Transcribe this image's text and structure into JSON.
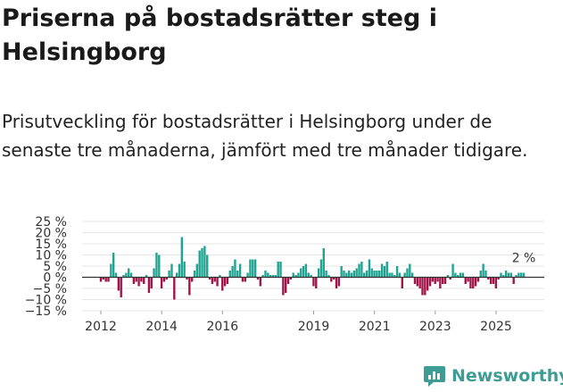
{
  "header": {
    "title": "Priserna på bostadsrätter steg i Helsingborg",
    "subtitle": "Prisutveckling för bostadsrätter i Helsingborg under de senaste tre månaderna, jämfört med tre månader tidigare."
  },
  "brand": {
    "name": "Newsworthy",
    "color": "#3d9c93"
  },
  "chart_data": {
    "type": "bar",
    "title": "",
    "xlabel": "",
    "ylabel": "",
    "ylim": [
      -15,
      25
    ],
    "y_ticks": [
      "25 %",
      "20 %",
      "15 %",
      "10 %",
      "5 %",
      "0 %",
      "−5 %",
      "−10 %",
      "−15 %"
    ],
    "y_tick_values": [
      25,
      20,
      15,
      10,
      5,
      0,
      -5,
      -10,
      -15
    ],
    "x_ticks": [
      "2012",
      "2014",
      "2016",
      "2019",
      "2021",
      "2023",
      "2025"
    ],
    "x_tick_values": [
      2012,
      2014,
      2016,
      2019,
      2021,
      2023,
      2025
    ],
    "x_start": 2012.0,
    "step": 0.0833,
    "positive_color": "#20a391",
    "negative_color": "#a01448",
    "annotation": "2 %",
    "series": [
      {
        "name": "Prisutveckling",
        "values": [
          -2,
          -1,
          -2,
          -2,
          6,
          11,
          2,
          -6,
          -9,
          1,
          2,
          4,
          2,
          -3,
          -2,
          -4,
          -2,
          -3,
          1,
          -7,
          -5,
          4,
          11,
          10,
          -5,
          -2,
          -1,
          3,
          6,
          -10,
          2,
          6,
          18,
          7,
          -1,
          -8,
          -2,
          3,
          6,
          12,
          13,
          14,
          10,
          -1,
          -3,
          -2,
          -4,
          1,
          -6,
          -4,
          -3,
          3,
          5,
          8,
          3,
          6,
          -2,
          -2,
          2,
          8,
          8,
          8,
          -1,
          -4,
          1,
          3,
          2,
          1,
          1,
          1,
          7,
          7,
          -8,
          -7,
          -3,
          -1,
          2,
          1,
          2,
          4,
          5,
          6,
          2,
          1,
          -4,
          -5,
          4,
          8,
          13,
          3,
          1,
          -2,
          -1,
          -5,
          -4,
          5,
          3,
          2,
          3,
          2,
          3,
          4,
          6,
          7,
          2,
          3,
          8,
          4,
          3,
          3,
          3,
          6,
          5,
          7,
          2,
          2,
          1,
          5,
          2,
          -5,
          2,
          4,
          6,
          2,
          -3,
          -4,
          -5,
          -8,
          -8,
          -6,
          -4,
          -2,
          -3,
          -2,
          -5,
          -3,
          -3,
          1,
          -1,
          6,
          2,
          1,
          2,
          2,
          -3,
          -2,
          -5,
          -5,
          -4,
          -2,
          3,
          6,
          3,
          -1,
          -3,
          -3,
          -5,
          -1,
          2,
          1,
          3,
          2,
          2,
          -3,
          1,
          2,
          2,
          2
        ]
      }
    ]
  }
}
